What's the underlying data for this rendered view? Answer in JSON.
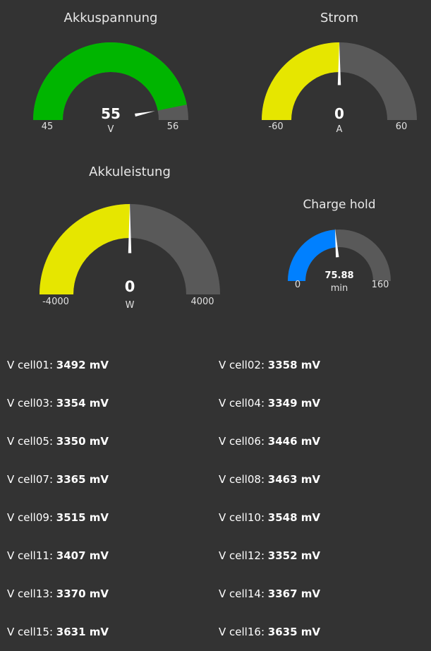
{
  "colors": {
    "background": "#333333",
    "track": "#595959",
    "green": "#00b500",
    "yellow": "#e6e600",
    "blue": "#0080ff",
    "needle": "#ffffff"
  },
  "gauges": [
    {
      "id": "akkuspannung",
      "title": "Akkuspannung",
      "value_text": "55",
      "value": 55.3,
      "unit": "V",
      "min": 45,
      "max": 56,
      "min_label": "45",
      "max_label": "56",
      "fill_color": "#00b500"
    },
    {
      "id": "strom",
      "title": "Strom",
      "value_text": "0",
      "value": 0,
      "unit": "A",
      "min": -60,
      "max": 60,
      "min_label": "-60",
      "max_label": "60",
      "fill_color": "#e6e600"
    },
    {
      "id": "akkuleistung",
      "title": "Akkuleistung",
      "value_text": "0",
      "value": 0,
      "unit": "W",
      "min": -4000,
      "max": 4000,
      "min_label": "-4000",
      "max_label": "4000",
      "fill_color": "#e6e600"
    },
    {
      "id": "charge-hold",
      "title": "Charge hold",
      "value_text": "75.88",
      "value": 75.88,
      "unit": "min",
      "min": 0,
      "max": 160,
      "min_label": "0",
      "max_label": "160",
      "fill_color": "#0080ff"
    }
  ],
  "cell_prefix": "V ",
  "cells": [
    {
      "label": "cell01",
      "value": "3492 mV"
    },
    {
      "label": "cell02",
      "value": "3358 mV"
    },
    {
      "label": "cell03",
      "value": "3354 mV"
    },
    {
      "label": "cell04",
      "value": "3349 mV"
    },
    {
      "label": "cell05",
      "value": "3350 mV"
    },
    {
      "label": "cell06",
      "value": "3446 mV"
    },
    {
      "label": "cell07",
      "value": "3365 mV"
    },
    {
      "label": "cell08",
      "value": "3463 mV"
    },
    {
      "label": "cell09",
      "value": "3515 mV"
    },
    {
      "label": "cell10",
      "value": "3548 mV"
    },
    {
      "label": "cell11",
      "value": "3407 mV"
    },
    {
      "label": "cell12",
      "value": "3352 mV"
    },
    {
      "label": "cell13",
      "value": "3370 mV"
    },
    {
      "label": "cell14",
      "value": "3367 mV"
    },
    {
      "label": "cell15",
      "value": "3631 mV"
    },
    {
      "label": "cell16",
      "value": "3635 mV"
    }
  ]
}
